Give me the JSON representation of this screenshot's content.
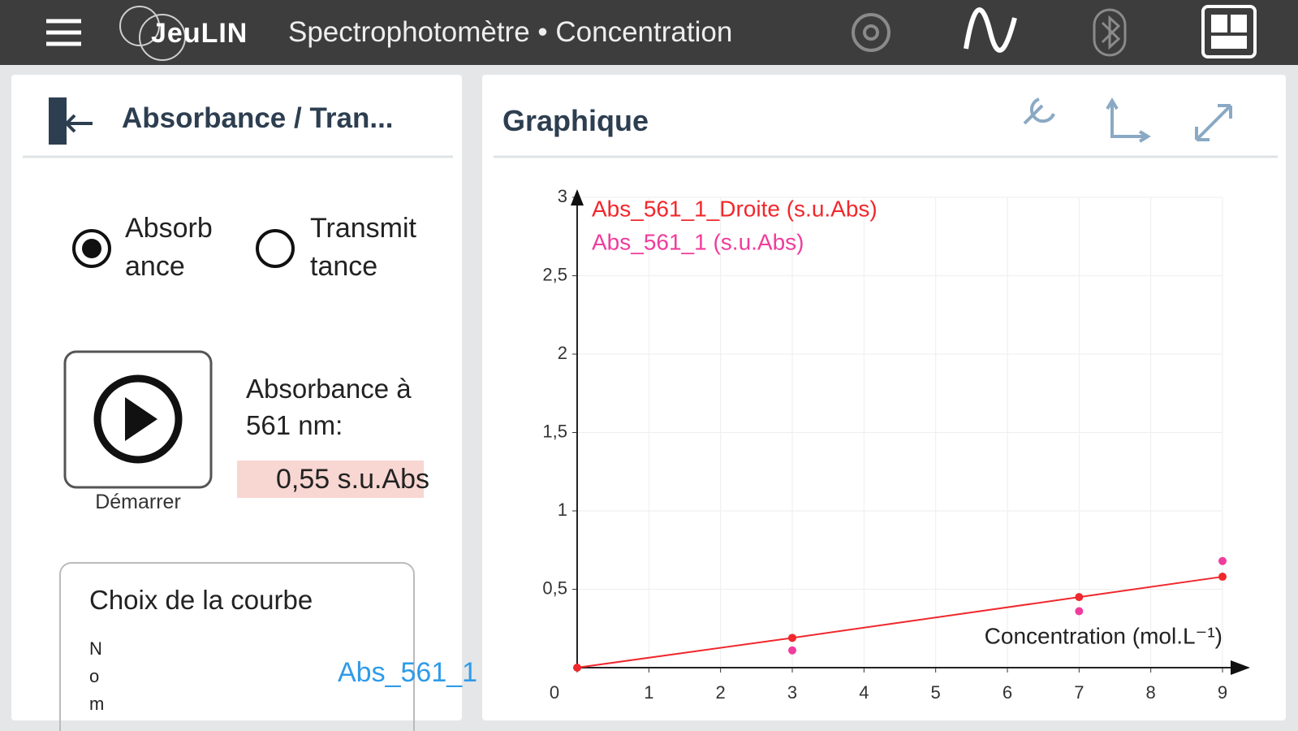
{
  "header": {
    "logo": "JeuLIN",
    "title": "Spectrophotomètre • Concentration"
  },
  "left_panel": {
    "title": "Absorbance / Tran...",
    "options": [
      "Absorbance",
      "Transmittance"
    ],
    "start_label": "Démarrer",
    "reading_label": "Absorbance à 561 nm:",
    "reading_value": "0,55 s.u.Abs",
    "curve_choice": {
      "title": "Choix de la courbe",
      "field_label": "Nom",
      "field_value": "Abs_561_1"
    }
  },
  "right_panel": {
    "title": "Graphique"
  },
  "chart_data": {
    "type": "scatter",
    "x_label": "Concentration (mol.L⁻¹)",
    "series": [
      {
        "name": "Abs_561_1_Droite (s.u.Abs)",
        "color": "#f0282d",
        "line": true,
        "x": [
          0,
          3,
          7,
          9
        ],
        "values": [
          0,
          0.19,
          0.45,
          0.58
        ]
      },
      {
        "name": "Abs_561_1 (s.u.Abs)",
        "color": "#f03c9c",
        "line": false,
        "x": [
          3,
          7,
          9
        ],
        "values": [
          0.11,
          0.36,
          0.68
        ]
      }
    ],
    "xlim": [
      0,
      9
    ],
    "ylim": [
      0,
      3
    ],
    "xticks": [
      0,
      1,
      2,
      3,
      4,
      5,
      6,
      7,
      8,
      9
    ],
    "yticks": [
      {
        "value": 0.5,
        "label": "0,5"
      },
      1,
      {
        "value": 1.5,
        "label": "1,5"
      },
      2,
      {
        "value": 2.5,
        "label": "2,5"
      },
      3
    ],
    "grid": true
  }
}
